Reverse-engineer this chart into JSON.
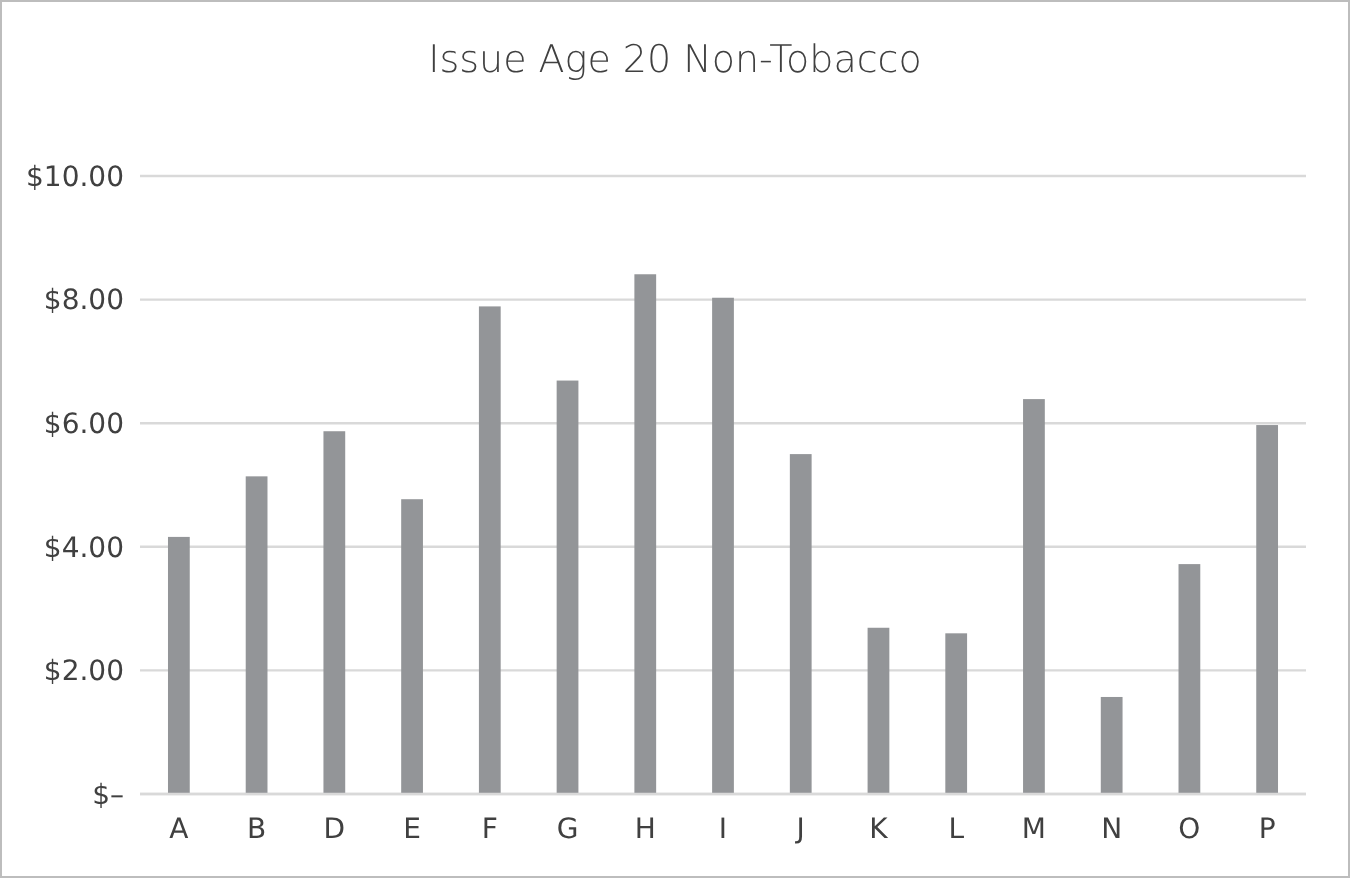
{
  "chart_data": {
    "type": "bar",
    "title": "Issue Age 20 Non-Tobacco",
    "categories": [
      "A",
      "B",
      "D",
      "E",
      "F",
      "G",
      "H",
      "I",
      "J",
      "K",
      "L",
      "M",
      "N",
      "O",
      "P"
    ],
    "values": [
      4.16,
      5.14,
      5.87,
      4.77,
      7.89,
      6.69,
      8.41,
      8.03,
      5.5,
      2.69,
      2.6,
      6.39,
      1.57,
      3.72,
      5.97
    ],
    "color": "#939598",
    "ylim": [
      0,
      10
    ],
    "yticks": [
      {
        "value": 0,
        "label": "$–"
      },
      {
        "value": 2,
        "label": "$2.00"
      },
      {
        "value": 4,
        "label": "$4.00"
      },
      {
        "value": 6,
        "label": "$6.00"
      },
      {
        "value": 8,
        "label": "$8.00"
      },
      {
        "value": 10,
        "label": "$10.00"
      }
    ],
    "grid": "y"
  }
}
